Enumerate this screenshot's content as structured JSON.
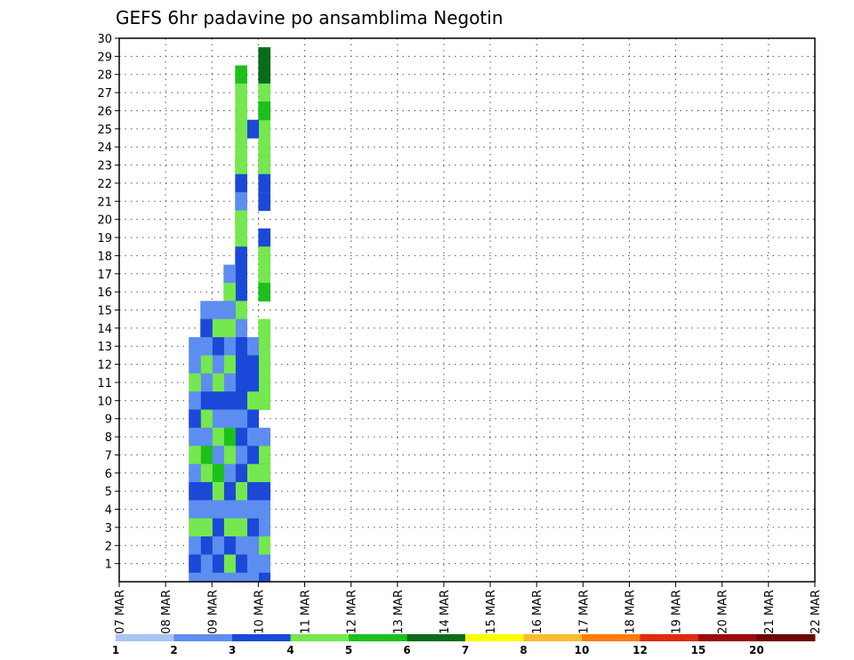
{
  "chart_data": {
    "type": "heatmap",
    "title": "GEFS 6hr padavine po ansamblima Negotin",
    "xlabel": "",
    "ylabel": "",
    "x_ticks": [
      "07 MAR",
      "08 MAR",
      "09 MAR",
      "10 MAR",
      "11 MAR",
      "12 MAR",
      "13 MAR",
      "14 MAR",
      "15 MAR",
      "16 MAR",
      "17 MAR",
      "18 MAR",
      "19 MAR",
      "20 MAR",
      "21 MAR",
      "22 MAR"
    ],
    "y_ticks": [
      "1",
      "2",
      "3",
      "4",
      "5",
      "6",
      "7",
      "8",
      "9",
      "10",
      "11",
      "12",
      "13",
      "14",
      "15",
      "16",
      "17",
      "18",
      "19",
      "20",
      "21",
      "22",
      "23",
      "24",
      "25",
      "26",
      "27",
      "28",
      "29",
      "30"
    ],
    "x_unit": "6-hour step from 07 MAR 00Z",
    "y_range": [
      0,
      30
    ],
    "grid": true,
    "colorbar": {
      "labels": [
        "1",
        "2",
        "3",
        "4",
        "5",
        "6",
        "7",
        "8",
        "10",
        "12",
        "15",
        "20"
      ],
      "colors": [
        "#aac4f4",
        "#5e8df0",
        "#1c48d8",
        "#74e84e",
        "#1cc01c",
        "#0a6c18",
        "#fcfc00",
        "#fcbc30",
        "#fc7c0c",
        "#dc2c0c",
        "#9c0a0a",
        "#6c0606"
      ]
    },
    "cells": [
      [
        12,
        29,
        1
      ],
      [
        12,
        29,
        3
      ],
      [
        12,
        29,
        5
      ],
      [
        12,
        28,
        3
      ],
      [
        12,
        28,
        5
      ],
      [
        12,
        27,
        3
      ],
      [
        12,
        26,
        2
      ],
      [
        12,
        25,
        3
      ],
      [
        12,
        26,
        4
      ],
      [
        11,
        25,
        2
      ],
      [
        12,
        24,
        3
      ],
      [
        12,
        23,
        2
      ],
      [
        12,
        23,
        3
      ],
      [
        12,
        22,
        3
      ],
      [
        12,
        22,
        2
      ],
      [
        12,
        21,
        3
      ],
      [
        12,
        21,
        2
      ],
      [
        12,
        19,
        3
      ],
      [
        12,
        19,
        2
      ],
      [
        12,
        18,
        3
      ],
      [
        12,
        17,
        3
      ],
      [
        12,
        16,
        4
      ],
      [
        12,
        14,
        7
      ],
      [
        12,
        14,
        3
      ],
      [
        12,
        13,
        3
      ],
      [
        12,
        12,
        3
      ],
      [
        12,
        11,
        3
      ],
      [
        12,
        10,
        3
      ],
      [
        12,
        8,
        3
      ],
      [
        12,
        8,
        1
      ],
      [
        12,
        7,
        5
      ],
      [
        12,
        7,
        3
      ],
      [
        12,
        6,
        2
      ],
      [
        12,
        6,
        3
      ],
      [
        12,
        5,
        2
      ],
      [
        12,
        4,
        1
      ],
      [
        12,
        3,
        1
      ],
      [
        12,
        2,
        3
      ],
      [
        12,
        1,
        1
      ],
      [
        12,
        0,
        2
      ],
      [
        11,
        13,
        1
      ],
      [
        11,
        12,
        2
      ],
      [
        11,
        11,
        2
      ],
      [
        11,
        10,
        3
      ],
      [
        11,
        9,
        2
      ],
      [
        11,
        8,
        1
      ],
      [
        11,
        7,
        2
      ],
      [
        11,
        6,
        3
      ],
      [
        11,
        5,
        2
      ],
      [
        11,
        4,
        1
      ],
      [
        11,
        3,
        2
      ],
      [
        11,
        2,
        1
      ],
      [
        11,
        1,
        1
      ],
      [
        11,
        0,
        1
      ],
      [
        10,
        20,
        1
      ],
      [
        10,
        21,
        1
      ],
      [
        10,
        23,
        1
      ],
      [
        10,
        28,
        4
      ],
      [
        10,
        27,
        3
      ],
      [
        10,
        26,
        3
      ],
      [
        10,
        25,
        3
      ],
      [
        10,
        24,
        3
      ],
      [
        10,
        23,
        3
      ],
      [
        10,
        22,
        2
      ],
      [
        10,
        21,
        1
      ],
      [
        10,
        20,
        3
      ],
      [
        10,
        19,
        3
      ],
      [
        10,
        18,
        2
      ],
      [
        10,
        17,
        2
      ],
      [
        10,
        16,
        2
      ],
      [
        10,
        15,
        3
      ],
      [
        10,
        14,
        1
      ],
      [
        10,
        13,
        2
      ],
      [
        10,
        12,
        2
      ],
      [
        10,
        11,
        2
      ],
      [
        10,
        10,
        2
      ],
      [
        10,
        9,
        1
      ],
      [
        10,
        8,
        2
      ],
      [
        10,
        7,
        1
      ],
      [
        10,
        6,
        2
      ],
      [
        10,
        5,
        3
      ],
      [
        10,
        4,
        1
      ],
      [
        10,
        3,
        3
      ],
      [
        10,
        2,
        1
      ],
      [
        10,
        1,
        2
      ],
      [
        10,
        0,
        1
      ],
      [
        9,
        17,
        1
      ],
      [
        9,
        16,
        3
      ],
      [
        9,
        15,
        1
      ],
      [
        9,
        14,
        3
      ],
      [
        9,
        13,
        1
      ],
      [
        9,
        12,
        3
      ],
      [
        9,
        11,
        1
      ],
      [
        9,
        10,
        2
      ],
      [
        9,
        9,
        1
      ],
      [
        9,
        8,
        4
      ],
      [
        9,
        7,
        3
      ],
      [
        9,
        6,
        1
      ],
      [
        9,
        5,
        2
      ],
      [
        9,
        4,
        1
      ],
      [
        9,
        3,
        3
      ],
      [
        9,
        2,
        2
      ],
      [
        9,
        1,
        3
      ],
      [
        9,
        0,
        1
      ],
      [
        8,
        15,
        1
      ],
      [
        8,
        14,
        3
      ],
      [
        8,
        13,
        2
      ],
      [
        8,
        12,
        1
      ],
      [
        8,
        11,
        3
      ],
      [
        8,
        10,
        2
      ],
      [
        8,
        9,
        1
      ],
      [
        8,
        8,
        3
      ],
      [
        8,
        7,
        1
      ],
      [
        8,
        6,
        4
      ],
      [
        8,
        5,
        3
      ],
      [
        8,
        4,
        1
      ],
      [
        8,
        3,
        2
      ],
      [
        8,
        2,
        1
      ],
      [
        8,
        1,
        2
      ],
      [
        8,
        0,
        1
      ],
      [
        7,
        15,
        1
      ],
      [
        7,
        14,
        2
      ],
      [
        7,
        13,
        1
      ],
      [
        7,
        12,
        3
      ],
      [
        7,
        11,
        1
      ],
      [
        7,
        10,
        2
      ],
      [
        7,
        9,
        3
      ],
      [
        7,
        8,
        1
      ],
      [
        7,
        7,
        4
      ],
      [
        7,
        6,
        3
      ],
      [
        7,
        5,
        2
      ],
      [
        7,
        4,
        1
      ],
      [
        7,
        3,
        3
      ],
      [
        7,
        2,
        2
      ],
      [
        7,
        1,
        1
      ],
      [
        7,
        0,
        1
      ],
      [
        6,
        13,
        1
      ],
      [
        6,
        12,
        1
      ],
      [
        6,
        11,
        3
      ],
      [
        6,
        10,
        1
      ],
      [
        6,
        9,
        2
      ],
      [
        6,
        8,
        1
      ],
      [
        6,
        7,
        3
      ],
      [
        6,
        6,
        1
      ],
      [
        6,
        5,
        2
      ],
      [
        6,
        4,
        1
      ],
      [
        6,
        3,
        3
      ],
      [
        6,
        2,
        1
      ],
      [
        6,
        1,
        2
      ],
      [
        6,
        0,
        1
      ]
    ]
  }
}
